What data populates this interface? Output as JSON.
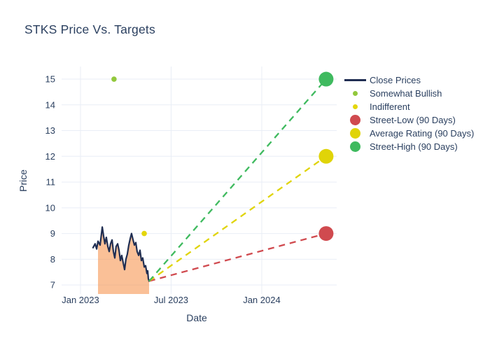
{
  "chart": {
    "title": "STKS Price Vs. Targets",
    "xlabel": "Date",
    "ylabel": "Price"
  },
  "legend": {
    "items": [
      {
        "label": "Close Prices",
        "marker": "line",
        "color": "#202e52"
      },
      {
        "label": "Somewhat Bullish",
        "marker": "dot-small",
        "color": "#92c83c"
      },
      {
        "label": "Indifferent",
        "marker": "dot-small",
        "color": "#e4d60b"
      },
      {
        "label": "Street-Low (90 Days)",
        "marker": "dot-large",
        "color": "#d04a4f"
      },
      {
        "label": "Average Rating (90 Days)",
        "marker": "dot-large",
        "color": "#e0d408"
      },
      {
        "label": "Street-High (90 Days)",
        "marker": "dot-large",
        "color": "#3fba5f"
      }
    ]
  },
  "chart_data": {
    "type": "line",
    "title": "STKS Price Vs. Targets",
    "xlabel": "Date",
    "ylabel": "Price",
    "x_unit": "months since Jan 2023",
    "xlim": [
      -1.25,
      16.96
    ],
    "ylim": [
      6.65,
      15.49
    ],
    "grid": true,
    "grid_color": "#e9eef6",
    "legend_position": "right",
    "y_ticks": [
      7,
      8,
      9,
      10,
      11,
      12,
      13,
      14,
      15
    ],
    "x_ticks": [
      {
        "label": "Jan 2023",
        "m": 0
      },
      {
        "label": "Jul 2023",
        "m": 6
      },
      {
        "label": "Jan 2024",
        "m": 12
      }
    ],
    "series": [
      {
        "name": "Close Prices",
        "type": "line",
        "color": "#202e52",
        "fill_color": "rgba(246,141,66,0.55)",
        "x": [
          0.83,
          0.97,
          1.07,
          1.16,
          1.3,
          1.44,
          1.53,
          1.62,
          1.71,
          1.81,
          1.9,
          1.99,
          2.09,
          2.18,
          2.27,
          2.36,
          2.46,
          2.55,
          2.64,
          2.73,
          2.83,
          2.92,
          3.01,
          3.1,
          3.2,
          3.29,
          3.38,
          3.48,
          3.57,
          3.66,
          3.75,
          3.85,
          3.94,
          4.03,
          4.12,
          4.22,
          4.31,
          4.4,
          4.45,
          4.49,
          4.54
        ],
        "y": [
          8.45,
          8.6,
          8.4,
          8.7,
          8.55,
          9.25,
          8.9,
          8.6,
          8.85,
          8.5,
          8.3,
          8.6,
          8.75,
          8.3,
          8.05,
          8.5,
          8.6,
          8.35,
          7.95,
          8.15,
          7.85,
          7.6,
          8.0,
          8.2,
          8.55,
          8.8,
          9.0,
          8.75,
          8.55,
          8.65,
          8.3,
          8.15,
          8.35,
          7.95,
          8.05,
          7.7,
          7.75,
          7.45,
          7.55,
          7.25,
          7.15
        ]
      }
    ],
    "rating_points": [
      {
        "name": "Somewhat Bullish",
        "x": 2.22,
        "y": 15,
        "color": "#92c83c"
      },
      {
        "name": "Indifferent",
        "x": 4.22,
        "y": 9,
        "color": "#e4d60b"
      }
    ],
    "targets": [
      {
        "name": "Street-Low (90 Days)",
        "from_x": 4.54,
        "from_y": 7.15,
        "to_x": 16.26,
        "to_y": 9,
        "color": "#d04a4f"
      },
      {
        "name": "Average Rating (90 Days)",
        "from_x": 4.54,
        "from_y": 7.15,
        "to_x": 16.26,
        "to_y": 12,
        "color": "#e0d408"
      },
      {
        "name": "Street-High (90 Days)",
        "from_x": 4.54,
        "from_y": 7.15,
        "to_x": 16.26,
        "to_y": 15,
        "color": "#3fba5f"
      }
    ]
  }
}
